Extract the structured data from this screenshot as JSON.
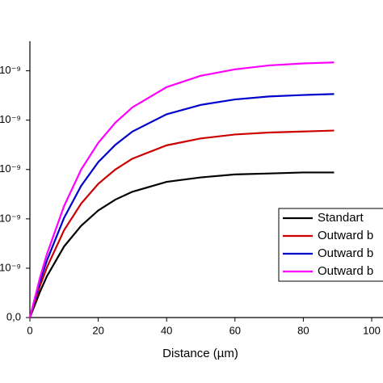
{
  "chart_data": {
    "type": "line",
    "xlabel": "Distance (µm)",
    "x": [
      0,
      3,
      5,
      10,
      15,
      20,
      25,
      30,
      40,
      50,
      60,
      70,
      80,
      89
    ],
    "series": [
      {
        "name": "Standart",
        "color": "#000000",
        "values": [
          0,
          5.3e-10,
          8.4e-10,
          1.44e-09,
          1.86e-09,
          2.17e-09,
          2.39e-09,
          2.55e-09,
          2.75e-09,
          2.84e-09,
          2.9e-09,
          2.92e-09,
          2.94e-09,
          2.94e-09
        ]
      },
      {
        "name": "Outward b",
        "color": "#cc0000",
        "values": [
          0,
          6.5e-10,
          1.02e-09,
          1.77e-09,
          2.31e-09,
          2.71e-09,
          3e-09,
          3.22e-09,
          3.49e-09,
          3.63e-09,
          3.71e-09,
          3.75e-09,
          3.77e-09,
          3.79e-09
        ]
      },
      {
        "name": "Outward b",
        "color": "#0000cc",
        "values": [
          0,
          7.4e-10,
          1.16e-09,
          2.02e-09,
          2.67e-09,
          3.15e-09,
          3.5e-09,
          3.77e-09,
          4.12e-09,
          4.31e-09,
          4.42e-09,
          4.48e-09,
          4.51e-09,
          4.53e-09
        ]
      },
      {
        "name": "Outward b",
        "color": "#ff00ff",
        "values": [
          0,
          8.2e-10,
          1.29e-09,
          2.26e-09,
          3e-09,
          3.54e-09,
          3.95e-09,
          4.26e-09,
          4.67e-09,
          4.9e-09,
          5.03e-09,
          5.11e-09,
          5.15e-09,
          5.17e-09
        ]
      }
    ],
    "xlim": [
      0,
      100
    ],
    "xticks": [
      0,
      20,
      40,
      60,
      80,
      100
    ],
    "ylim": [
      0,
      5.6e-09
    ],
    "yticks": [
      {
        "value": 0,
        "label": "0,0"
      },
      {
        "value": 1e-09,
        "label": "10⁻⁹"
      },
      {
        "value": 2e-09,
        "label": "10⁻⁹"
      },
      {
        "value": 3e-09,
        "label": "10⁻⁹"
      },
      {
        "value": 4e-09,
        "label": "10⁻⁹"
      },
      {
        "value": 5e-09,
        "label": "10⁻⁹"
      }
    ],
    "legend": "lower right"
  }
}
